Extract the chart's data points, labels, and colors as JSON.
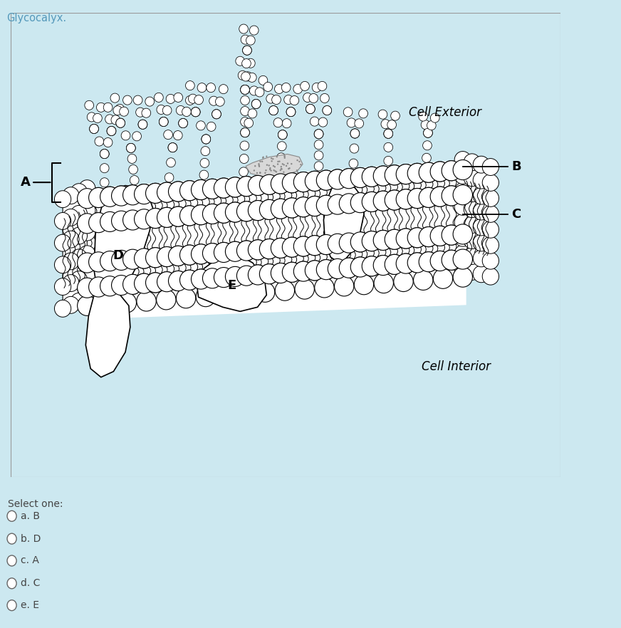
{
  "bg_color": "#cce8f0",
  "panel_bg": "#ffffff",
  "panel_border": "#aaaaaa",
  "title": "Glycocalyx.",
  "title_color": "#5599bb",
  "title_fontsize": 10.5,
  "select_text": "Select one:",
  "options": [
    "a. B",
    "b. D",
    "c. A",
    "d. C",
    "e. E"
  ],
  "label_fontsize": 13,
  "cell_exterior": "Cell Exterior",
  "cell_interior": "Cell Interior",
  "lc": "#000000",
  "fc": "#ffffff"
}
